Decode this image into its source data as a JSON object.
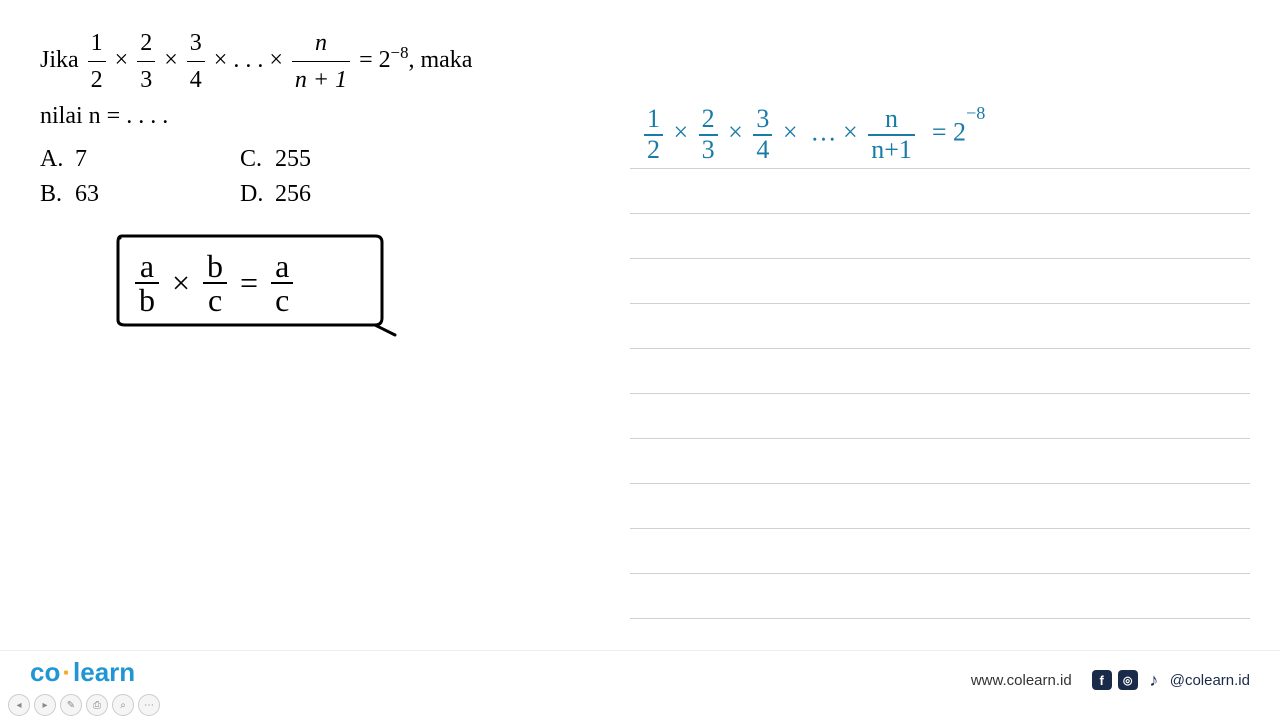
{
  "question": {
    "prefix": "Jika",
    "frac1_num": "1",
    "frac1_den": "2",
    "frac2_num": "2",
    "frac2_den": "3",
    "frac3_num": "3",
    "frac3_den": "4",
    "dots": ". . .",
    "fracn_num": "n",
    "fracn_den": "n + 1",
    "equals_rhs_base": "2",
    "equals_rhs_exp": "−8",
    "suffix": ", maka",
    "line2": "nilai n = . . . .",
    "options": {
      "A": "7",
      "B": "63",
      "C": "255",
      "D": "256"
    }
  },
  "hint_box": {
    "f1_num": "a",
    "f1_den": "b",
    "op": "×",
    "f2_num": "b",
    "f2_den": "c",
    "eq": "=",
    "f3_num": "a",
    "f3_den": "c",
    "border_color": "#000000",
    "text_color": "#000000"
  },
  "work": {
    "color": "#1a7ba8",
    "f1_num": "1",
    "f1_den": "2",
    "f2_num": "2",
    "f2_den": "3",
    "f3_num": "3",
    "f3_den": "4",
    "dots": "…",
    "fn_num": "n",
    "fn_den": "n+1",
    "rhs_base": "2",
    "rhs_exp": "−8"
  },
  "notebook": {
    "line_color": "#d0d0d0",
    "line_positions": [
      68,
      113,
      158,
      203,
      248,
      293,
      338,
      383,
      428,
      473,
      518
    ]
  },
  "footer": {
    "logo_co": "co",
    "logo_learn": "learn",
    "logo_color": "#2196d4",
    "dot_color": "#f5a623",
    "website": "www.colearn.id",
    "handle": "@colearn.id",
    "social_bg": "#1a2b4a",
    "controls": [
      "◂",
      "▸",
      "✎",
      "⎙",
      "⌕",
      "⋯"
    ]
  }
}
